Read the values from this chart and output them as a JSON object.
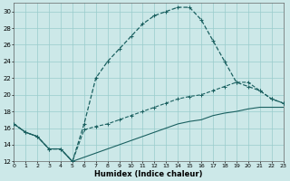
{
  "xlabel": "Humidex (Indice chaleur)",
  "bg_color": "#cce8e8",
  "grid_color": "#99cccc",
  "line_color": "#1a6060",
  "xlim": [
    0,
    23
  ],
  "ylim": [
    12,
    31
  ],
  "xticks": [
    0,
    1,
    2,
    3,
    4,
    5,
    6,
    7,
    8,
    9,
    10,
    11,
    12,
    13,
    14,
    15,
    16,
    17,
    18,
    19,
    20,
    21,
    22,
    23
  ],
  "yticks": [
    12,
    14,
    16,
    18,
    20,
    22,
    24,
    26,
    28,
    30
  ],
  "line1_x": [
    0,
    1,
    2,
    3,
    4,
    5,
    6,
    7,
    8,
    9,
    10,
    11,
    12,
    13,
    14,
    15,
    16,
    17,
    18,
    19,
    20,
    21,
    22,
    23
  ],
  "line1_y": [
    16.5,
    15.5,
    15.0,
    13.5,
    13.5,
    12.0,
    16.5,
    22.0,
    24.0,
    25.5,
    27.0,
    28.5,
    29.5,
    30.0,
    30.5,
    30.5,
    29.0,
    26.5,
    24.0,
    21.5,
    21.0,
    20.5,
    19.5,
    19.0
  ],
  "line2_x": [
    0,
    1,
    2,
    3,
    4,
    5,
    6,
    7,
    8,
    9,
    10,
    11,
    12,
    13,
    14,
    15,
    16,
    17,
    18,
    19,
    20,
    21,
    22,
    23
  ],
  "line2_y": [
    16.5,
    15.5,
    15.0,
    13.5,
    13.5,
    12.0,
    15.8,
    16.2,
    16.5,
    17.0,
    17.5,
    18.0,
    18.5,
    19.0,
    19.5,
    19.8,
    20.0,
    20.5,
    21.0,
    21.5,
    21.5,
    20.5,
    19.5,
    19.0
  ],
  "line3_x": [
    0,
    1,
    2,
    3,
    4,
    5,
    6,
    7,
    8,
    9,
    10,
    11,
    12,
    13,
    14,
    15,
    16,
    17,
    18,
    19,
    20,
    21,
    22,
    23
  ],
  "line3_y": [
    16.5,
    15.5,
    15.0,
    13.5,
    13.5,
    12.0,
    12.5,
    13.0,
    13.5,
    14.0,
    14.5,
    15.0,
    15.5,
    16.0,
    16.5,
    16.8,
    17.0,
    17.5,
    17.8,
    18.0,
    18.3,
    18.5,
    18.5,
    18.5
  ]
}
